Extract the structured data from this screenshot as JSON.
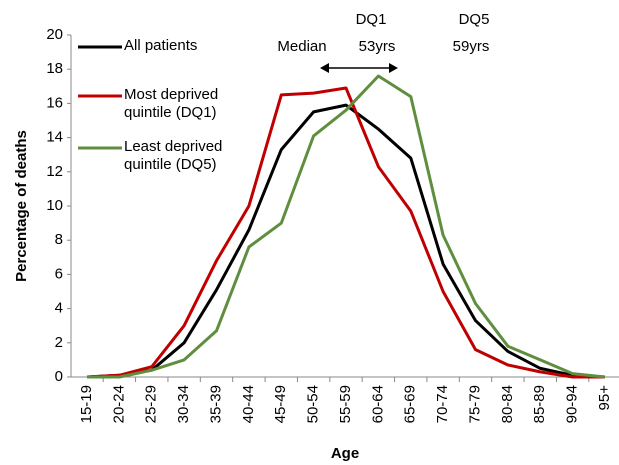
{
  "chart_data": {
    "type": "line",
    "x_label": "Age",
    "y_label": "Percentage of deaths",
    "categories": [
      "15-19",
      "20-24",
      "25-29",
      "30-34",
      "35-39",
      "40-44",
      "45-49",
      "50-54",
      "55-59",
      "60-64",
      "65-69",
      "70-74",
      "75-79",
      "80-84",
      "85-89",
      "90-94",
      "95+"
    ],
    "series": [
      {
        "name": "All patients",
        "color": "#000000",
        "values": [
          0,
          0.1,
          0.4,
          2.0,
          5.1,
          8.6,
          13.3,
          15.5,
          15.9,
          14.5,
          12.8,
          6.6,
          3.3,
          1.5,
          0.5,
          0.1,
          0
        ]
      },
      {
        "name": "Most deprived quintile (DQ1)",
        "color": "#c00000",
        "values": [
          0,
          0.1,
          0.6,
          3.0,
          6.8,
          10.0,
          16.5,
          16.6,
          16.9,
          12.3,
          9.7,
          5.0,
          1.6,
          0.7,
          0.3,
          0,
          0
        ]
      },
      {
        "name": "Least deprived quintile (DQ5)",
        "color": "#5f8f3e",
        "values": [
          0,
          0,
          0.4,
          1.0,
          2.7,
          7.6,
          9.0,
          14.1,
          15.6,
          17.6,
          16.4,
          8.3,
          4.3,
          1.8,
          1.0,
          0.2,
          0
        ]
      }
    ],
    "ylim": [
      0,
      20
    ],
    "yticks": [
      0,
      2,
      4,
      6,
      8,
      10,
      12,
      14,
      16,
      18,
      20
    ],
    "grid": false,
    "legend": "upper left",
    "annotations": [
      "Median",
      "DQ1",
      "53yrs",
      "DQ5",
      "59yrs"
    ]
  }
}
